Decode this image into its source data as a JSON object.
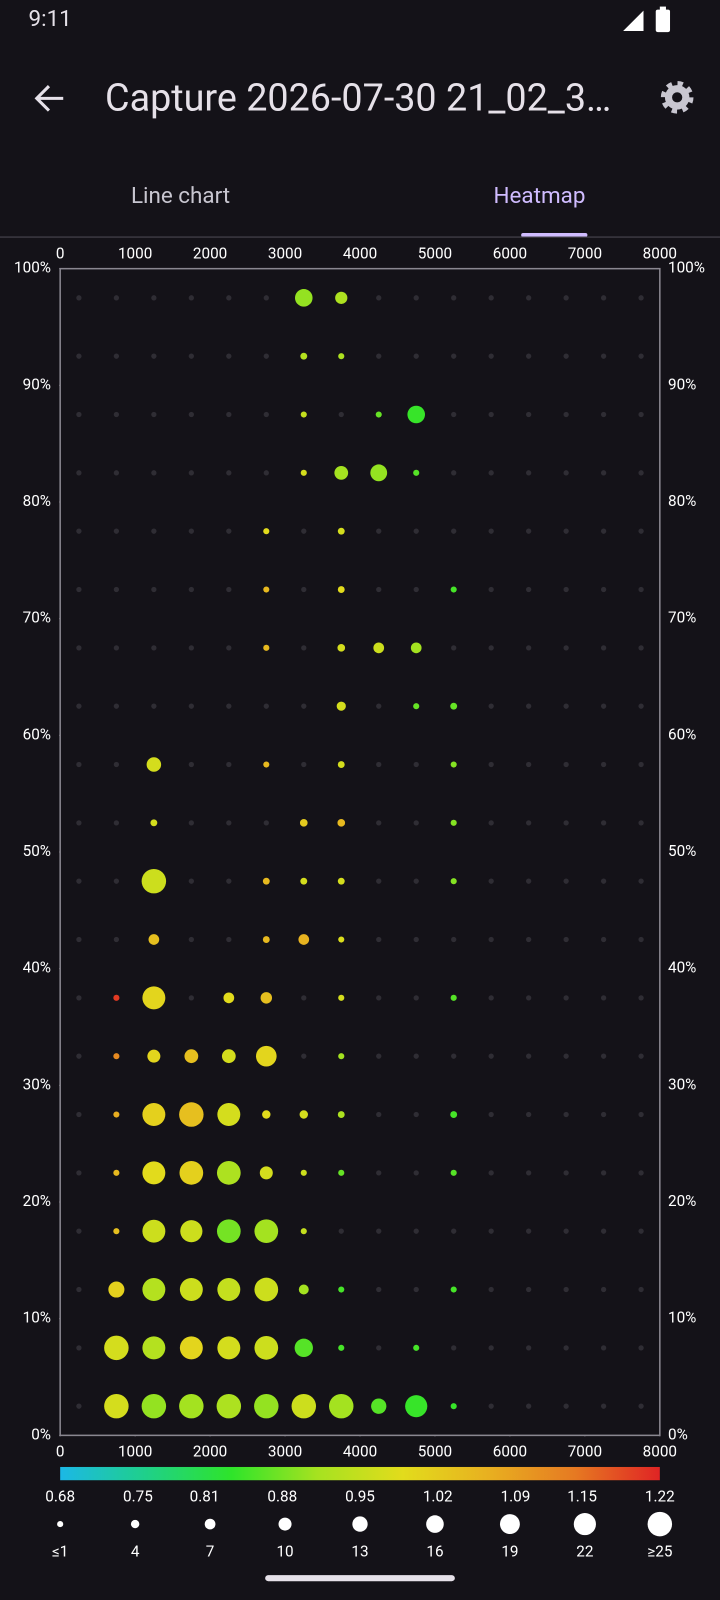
{
  "status_time": "9:11",
  "title": "Capture 2026-07-30 21_02_3…",
  "tabs": [
    "Line chart",
    "Heatmap"
  ],
  "chart_data": {
    "type": "bubble-heatmap",
    "xlim": [
      0,
      8000
    ],
    "xticks": [
      0,
      1000,
      2000,
      3000,
      4000,
      5000,
      6000,
      7000,
      8000
    ],
    "ylim": [
      0,
      100
    ],
    "yticks": [
      {
        "value": 0,
        "label": "0%"
      },
      {
        "value": 10,
        "label": "10%"
      },
      {
        "value": 20,
        "label": "20%"
      },
      {
        "value": 30,
        "label": "30%"
      },
      {
        "value": 40,
        "label": "40%"
      },
      {
        "value": 50,
        "label": "50%"
      },
      {
        "value": 60,
        "label": "60%"
      },
      {
        "value": 70,
        "label": "70%"
      },
      {
        "value": 80,
        "label": "80%"
      },
      {
        "value": 90,
        "label": "90%"
      },
      {
        "value": 100,
        "label": "100%"
      }
    ],
    "clim": [
      0.68,
      1.22
    ],
    "cticks": [
      0.68,
      0.75,
      0.81,
      0.88,
      0.95,
      1.02,
      1.09,
      1.15,
      1.22
    ],
    "colorscale": [
      "#1cb8e6",
      "#1fd08a",
      "#2ee42a",
      "#a6e220",
      "#e2dc1c",
      "#e8b020",
      "#e67a22",
      "#e02424"
    ],
    "size_ticks": [
      {
        "value": 1,
        "label": "≤1"
      },
      4,
      7,
      10,
      13,
      16,
      19,
      22,
      {
        "value": 25,
        "label": "≥25"
      }
    ],
    "series": [
      {
        "x": [
          3250,
          3750,
          3250,
          3750,
          3250,
          4250,
          4750,
          3250,
          3750,
          4250,
          4750,
          2750,
          3750,
          2750,
          3750,
          5250,
          2750,
          3750,
          4250,
          4750,
          3750,
          4750,
          5250,
          1250,
          2750,
          3750,
          5250,
          1250,
          3250,
          3750,
          5250,
          1250,
          2750,
          3250,
          3750,
          5250,
          1250,
          2750,
          3250,
          3750,
          750,
          1250,
          2250,
          2750,
          3750,
          5250,
          750,
          1250,
          1750,
          2250,
          2750,
          3750,
          750,
          1250,
          1750,
          2250,
          2750,
          3250,
          3750,
          5250,
          750,
          1250,
          1750,
          2250,
          2750,
          3250,
          3750,
          5250,
          750,
          1250,
          1750,
          2250,
          2750,
          3250,
          750,
          1250,
          1750,
          2250,
          2750,
          3250,
          3750,
          5250,
          750,
          1250,
          1750,
          2250,
          2750,
          3250,
          3750,
          4750,
          750,
          1250,
          1750,
          2250,
          2750,
          3250,
          3750,
          4250,
          4750,
          5250
        ],
        "y": [
          97.5,
          97.5,
          92.5,
          92.5,
          87.5,
          87.5,
          87.5,
          82.5,
          82.5,
          82.5,
          82.5,
          77.5,
          77.5,
          72.5,
          72.5,
          72.5,
          67.5,
          67.5,
          67.5,
          67.5,
          62.5,
          62.5,
          62.5,
          57.5,
          57.5,
          57.5,
          57.5,
          52.5,
          52.5,
          52.5,
          52.5,
          47.5,
          47.5,
          47.5,
          47.5,
          47.5,
          42.5,
          42.5,
          42.5,
          42.5,
          37.5,
          37.5,
          37.5,
          37.5,
          37.5,
          37.5,
          32.5,
          32.5,
          32.5,
          32.5,
          32.5,
          32.5,
          27.5,
          27.5,
          27.5,
          27.5,
          27.5,
          27.5,
          27.5,
          27.5,
          22.5,
          22.5,
          22.5,
          22.5,
          22.5,
          22.5,
          22.5,
          22.5,
          17.5,
          17.5,
          17.5,
          17.5,
          17.5,
          17.5,
          12.5,
          12.5,
          12.5,
          12.5,
          12.5,
          12.5,
          12.5,
          12.5,
          7.5,
          7.5,
          7.5,
          7.5,
          7.5,
          7.5,
          7.5,
          7.5,
          2.5,
          2.5,
          2.5,
          2.5,
          2.5,
          2.5,
          2.5,
          2.5,
          2.5,
          2.5
        ],
        "sizes": [
          16,
          9,
          2,
          1,
          1,
          1,
          16,
          1,
          11,
          15,
          1,
          1,
          2,
          1,
          2,
          1,
          1,
          3,
          7,
          7,
          5,
          1,
          2,
          12,
          1,
          2,
          1,
          2,
          3,
          3,
          1,
          25,
          2,
          2,
          2,
          1,
          7,
          2,
          7,
          1,
          1,
          23,
          7,
          8,
          1,
          1,
          1,
          10,
          11,
          11,
          20,
          1,
          1,
          23,
          25,
          23,
          4,
          4,
          2,
          2,
          1,
          23,
          24,
          24,
          10,
          1,
          1,
          1,
          1,
          23,
          22,
          24,
          24,
          1,
          14,
          23,
          23,
          23,
          24,
          6,
          1,
          1,
          25,
          23,
          23,
          23,
          24,
          17,
          1,
          1,
          25,
          25,
          25,
          25,
          25,
          25,
          25,
          13,
          22,
          1
        ],
        "values": [
          0.9,
          0.92,
          0.93,
          0.92,
          0.95,
          0.87,
          0.84,
          0.97,
          0.91,
          0.9,
          0.86,
          0.99,
          0.97,
          1.05,
          0.99,
          0.85,
          1.05,
          0.97,
          0.96,
          0.91,
          0.97,
          0.87,
          0.87,
          0.97,
          1.05,
          0.97,
          0.89,
          0.97,
          1.02,
          1.05,
          0.89,
          0.96,
          1.05,
          0.97,
          0.97,
          0.89,
          1.04,
          1.05,
          1.06,
          0.98,
          1.2,
          1.0,
          0.99,
          1.04,
          0.97,
          0.86,
          1.12,
          1.0,
          1.04,
          0.97,
          1.0,
          0.91,
          1.07,
          1.01,
          1.04,
          0.97,
          0.99,
          0.97,
          0.92,
          0.85,
          1.05,
          0.99,
          1.01,
          0.92,
          0.97,
          0.96,
          0.87,
          0.86,
          1.04,
          0.96,
          0.96,
          0.88,
          0.91,
          0.95,
          1.01,
          0.93,
          0.96,
          0.95,
          0.96,
          0.91,
          0.85,
          0.85,
          0.97,
          0.93,
          1.0,
          0.97,
          0.96,
          0.86,
          0.85,
          0.85,
          0.97,
          0.9,
          0.91,
          0.92,
          0.9,
          0.96,
          0.91,
          0.86,
          0.84,
          0.84
        ]
      }
    ]
  }
}
